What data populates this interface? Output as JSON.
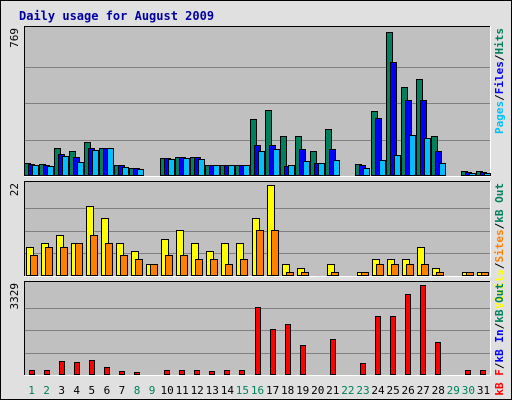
{
  "title": "Daily usage for August 2009",
  "colors": {
    "background": "#e0e0e0",
    "panel": "#c0c0c0",
    "title": "#0000a0",
    "hits": "#00805c",
    "files": "#0000ff",
    "pages": "#00c0ff",
    "visits": "#ffff00",
    "sites": "#ff8000",
    "kbout": "#00805c",
    "kbin": "#0000ff",
    "kbf": "#ff0000",
    "weekday": "#000000",
    "weekend": "#00805c"
  },
  "chart_data": [
    {
      "type": "bar",
      "categories": [
        "1",
        "2",
        "3",
        "4",
        "5",
        "6",
        "7",
        "8",
        "9",
        "10",
        "11",
        "12",
        "13",
        "14",
        "15",
        "16",
        "17",
        "18",
        "19",
        "20",
        "21",
        "22",
        "23",
        "24",
        "25",
        "26",
        "27",
        "28",
        "29",
        "30",
        "31"
      ],
      "weekend_days": [
        "1",
        "2",
        "8",
        "9",
        "15",
        "16",
        "22",
        "23",
        "29",
        "30"
      ],
      "ymax_label": "769",
      "ylim": [
        0,
        769
      ],
      "right_label": [
        {
          "text": "Pages",
          "color": "#00c0ff"
        },
        {
          "text": "/",
          "color": "#000000"
        },
        {
          "text": "Files",
          "color": "#0000ff"
        },
        {
          "text": "/",
          "color": "#000000"
        },
        {
          "text": "Hits",
          "color": "#00805c"
        }
      ],
      "series": [
        {
          "name": "Hits",
          "color": "#00805c",
          "values": [
            70,
            65,
            150,
            130,
            180,
            150,
            60,
            40,
            5,
            95,
            100,
            100,
            60,
            60,
            60,
            300,
            350,
            210,
            210,
            130,
            250,
            0,
            65,
            340,
            760,
            470,
            510,
            210,
            0,
            25,
            25
          ]
        },
        {
          "name": "Files",
          "color": "#0000ff",
          "values": [
            65,
            60,
            115,
            100,
            145,
            145,
            60,
            40,
            5,
            95,
            100,
            100,
            60,
            60,
            60,
            165,
            165,
            55,
            140,
            70,
            140,
            0,
            60,
            305,
            600,
            400,
            400,
            130,
            0,
            20,
            20
          ]
        },
        {
          "name": "Pages",
          "color": "#00c0ff",
          "values": [
            60,
            55,
            105,
            75,
            135,
            145,
            50,
            35,
            3,
            90,
            95,
            90,
            60,
            60,
            60,
            130,
            140,
            60,
            80,
            70,
            85,
            0,
            40,
            85,
            110,
            215,
            200,
            70,
            0,
            15,
            15
          ]
        }
      ]
    },
    {
      "type": "bar",
      "categories": [
        "1",
        "2",
        "3",
        "4",
        "5",
        "6",
        "7",
        "8",
        "9",
        "10",
        "11",
        "12",
        "13",
        "14",
        "15",
        "16",
        "17",
        "18",
        "19",
        "20",
        "21",
        "22",
        "23",
        "24",
        "25",
        "26",
        "27",
        "28",
        "29",
        "30",
        "31"
      ],
      "ymax_label": "22",
      "ylim": [
        0,
        22
      ],
      "right_label": [
        {
          "text": "Visits",
          "color": "#ffff00"
        },
        {
          "text": "/",
          "color": "#000000"
        },
        {
          "text": "Sites",
          "color": "#ff8000"
        },
        {
          "text": "/",
          "color": "#000000"
        },
        {
          "text": "kB Out",
          "color": "#00805c"
        }
      ],
      "series": [
        {
          "name": "Visits",
          "color": "#ffff00",
          "values": [
            7,
            8,
            10,
            8,
            17,
            14,
            8,
            6,
            3,
            9,
            11,
            8,
            6,
            8,
            8,
            14,
            22,
            3,
            2,
            0,
            3,
            0,
            1,
            4,
            4,
            4,
            7,
            2,
            0,
            1,
            1
          ]
        },
        {
          "name": "Sites",
          "color": "#ff8000",
          "values": [
            5,
            7,
            7,
            8,
            10,
            8,
            5,
            4,
            3,
            5,
            5,
            4,
            4,
            3,
            4,
            11,
            11,
            1,
            1,
            0,
            1,
            0,
            1,
            3,
            3,
            3,
            3,
            1,
            0,
            1,
            1
          ]
        }
      ]
    },
    {
      "type": "bar",
      "categories": [
        "1",
        "2",
        "3",
        "4",
        "5",
        "6",
        "7",
        "8",
        "9",
        "10",
        "11",
        "12",
        "13",
        "14",
        "15",
        "16",
        "17",
        "18",
        "19",
        "20",
        "21",
        "22",
        "23",
        "24",
        "25",
        "26",
        "27",
        "28",
        "29",
        "30",
        "31"
      ],
      "ymax_label": "3329",
      "ylim": [
        0,
        3329
      ],
      "right_label": [
        {
          "text": "kB F",
          "color": "#ff0000"
        },
        {
          "text": "/",
          "color": "#000000"
        },
        {
          "text": "kB In",
          "color": "#0000ff"
        },
        {
          "text": "/",
          "color": "#000000"
        },
        {
          "text": "kB Out",
          "color": "#00805c"
        }
      ],
      "series": [
        {
          "name": "kB F",
          "color": "#ff0000",
          "values": [
            170,
            170,
            520,
            480,
            560,
            300,
            140,
            100,
            50,
            200,
            200,
            200,
            150,
            170,
            170,
            2500,
            1700,
            1900,
            1100,
            20,
            1330,
            0,
            440,
            2200,
            2200,
            3000,
            3329,
            1230,
            0,
            180,
            180
          ]
        }
      ]
    }
  ]
}
